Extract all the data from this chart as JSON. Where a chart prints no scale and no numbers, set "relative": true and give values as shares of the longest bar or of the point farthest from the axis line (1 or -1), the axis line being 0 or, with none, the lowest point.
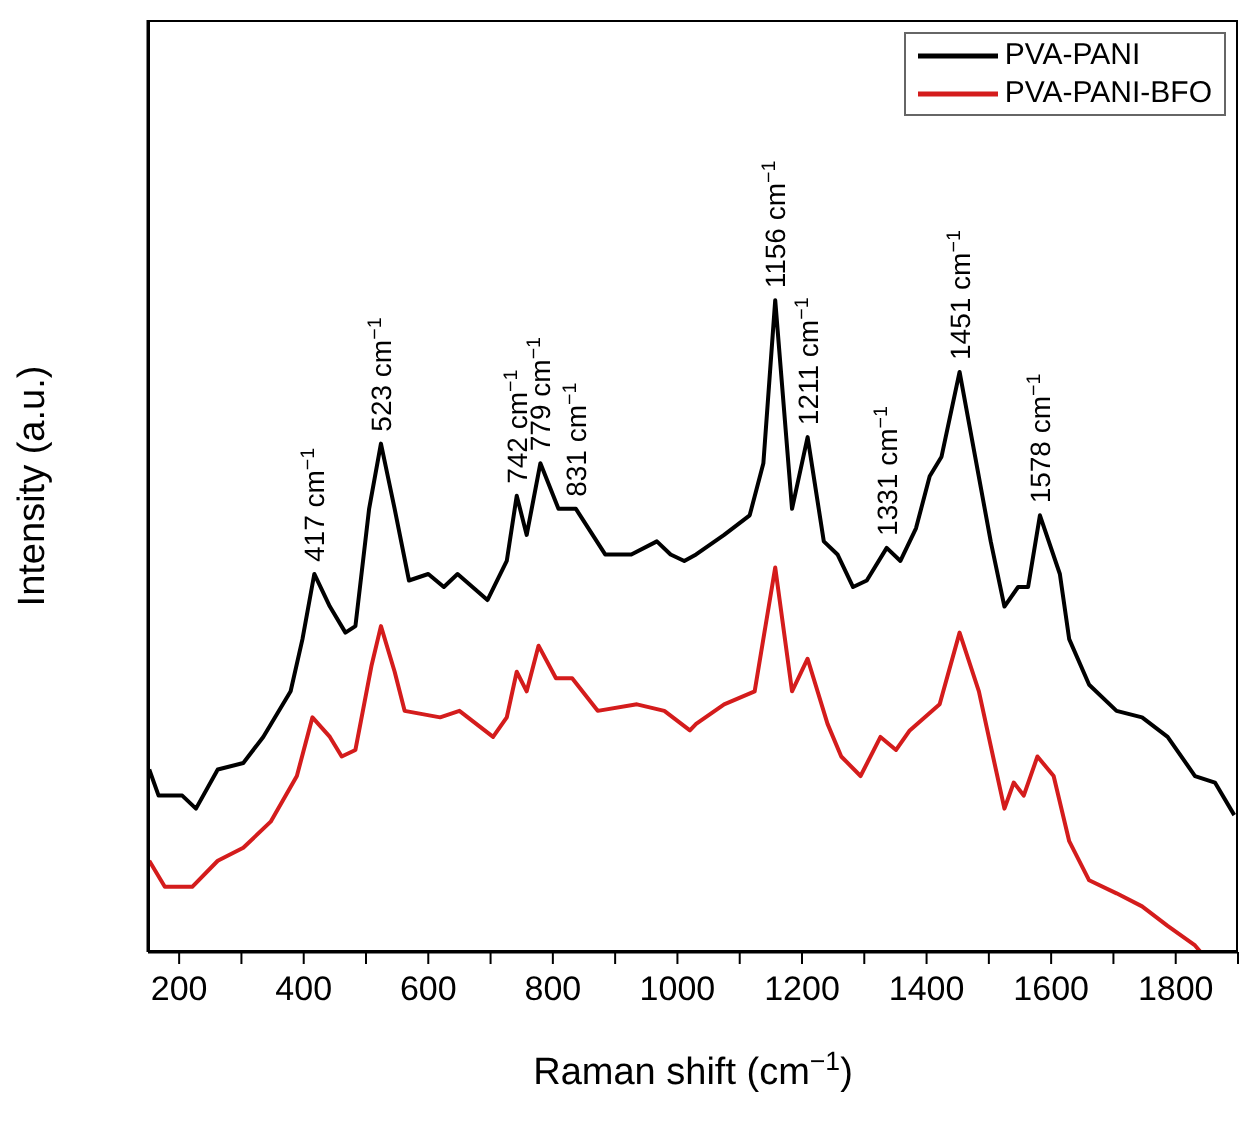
{
  "chart_data": {
    "type": "line",
    "relative": true,
    "xlabel": "Raman shift (cm$^{−1}$)",
    "ylabel": "Intensity (a.u.)",
    "xlim": [
      150,
      1900
    ],
    "xticks": [
      200,
      {
        "value": 300,
        "label": null
      },
      400,
      {
        "value": 500,
        "label": null
      },
      600,
      {
        "value": 700,
        "label": null
      },
      800,
      {
        "value": 900,
        "label": null
      },
      1000,
      {
        "value": 1100,
        "label": null
      },
      1200,
      {
        "value": 1300,
        "label": null
      },
      1400,
      {
        "value": 1500,
        "label": null
      },
      1600,
      {
        "value": 1700,
        "label": null
      },
      1800,
      {
        "value": 1900,
        "label": null
      }
    ],
    "legend": "top right",
    "marker": "none",
    "line_style": "solid",
    "grid": false,
    "series": [
      {
        "name": "PVA-PANI",
        "color": "#000000",
        "x": [
          152,
          167,
          205,
          227,
          262,
          303,
          335,
          379,
          398,
          417,
          442,
          467,
          483,
          505,
          524,
          546,
          569,
          600,
          625,
          647,
          695,
          726,
          742,
          758,
          780,
          809,
          837,
          884,
          926,
          967,
          989,
          1011,
          1030,
          1075,
          1116,
          1138,
          1157,
          1184,
          1209,
          1235,
          1257,
          1282,
          1304,
          1336,
          1358,
          1383,
          1405,
          1424,
          1453,
          1478,
          1503,
          1525,
          1547,
          1563,
          1582,
          1614,
          1629,
          1661,
          1705,
          1746,
          1787,
          1831,
          1863,
          1894
        ],
        "values": [
          0.28,
          0.24,
          0.24,
          0.22,
          0.28,
          0.29,
          0.33,
          0.4,
          0.48,
          0.58,
          0.53,
          0.49,
          0.5,
          0.68,
          0.78,
          0.68,
          0.57,
          0.58,
          0.56,
          0.58,
          0.54,
          0.6,
          0.7,
          0.64,
          0.75,
          0.68,
          0.68,
          0.61,
          0.61,
          0.63,
          0.61,
          0.6,
          0.61,
          0.64,
          0.67,
          0.75,
          1.0,
          0.68,
          0.79,
          0.63,
          0.61,
          0.56,
          0.57,
          0.62,
          0.6,
          0.65,
          0.73,
          0.76,
          0.89,
          0.76,
          0.63,
          0.53,
          0.56,
          0.56,
          0.67,
          0.58,
          0.48,
          0.41,
          0.37,
          0.36,
          0.33,
          0.27,
          0.26,
          0.21
        ]
      },
      {
        "name": "PVA-PANI-BFO",
        "color": "#d41c1c",
        "x": [
          152,
          177,
          221,
          262,
          303,
          347,
          389,
          414,
          442,
          461,
          483,
          509,
          524,
          546,
          562,
          619,
          650,
          704,
          726,
          742,
          758,
          777,
          805,
          831,
          872,
          935,
          979,
          1020,
          1030,
          1075,
          1124,
          1157,
          1184,
          1209,
          1241,
          1263,
          1294,
          1326,
          1351,
          1373,
          1421,
          1453,
          1484,
          1509,
          1525,
          1540,
          1556,
          1578,
          1604,
          1629,
          1661,
          1705,
          1746,
          1787,
          1831,
          1840
        ],
        "values": [
          0.14,
          0.1,
          0.1,
          0.14,
          0.16,
          0.2,
          0.27,
          0.36,
          0.33,
          0.3,
          0.31,
          0.44,
          0.5,
          0.43,
          0.37,
          0.36,
          0.37,
          0.33,
          0.36,
          0.43,
          0.4,
          0.47,
          0.42,
          0.42,
          0.37,
          0.38,
          0.37,
          0.34,
          0.35,
          0.38,
          0.4,
          0.59,
          0.4,
          0.45,
          0.35,
          0.3,
          0.27,
          0.33,
          0.31,
          0.34,
          0.38,
          0.49,
          0.4,
          0.29,
          0.22,
          0.26,
          0.24,
          0.3,
          0.27,
          0.17,
          0.11,
          0.09,
          0.07,
          0.04,
          0.01,
          0.0
        ]
      }
    ],
    "annotations": [
      {
        "text": "417 cm$^{−1}$",
        "x": 417,
        "y": 0.58
      },
      {
        "text": "523 cm$^{−1}$",
        "x": 524,
        "y": 0.78
      },
      {
        "text": "742 cm$^{−1}$",
        "x": 742,
        "y": 0.7
      },
      {
        "text": "779 cm$^{−1}$",
        "x": 780,
        "y": 0.75
      },
      {
        "text": "831 cm$^{−1}$",
        "x": 837,
        "y": 0.68
      },
      {
        "text": "1156 cm$^{−1}$",
        "x": 1157,
        "y": 1.0
      },
      {
        "text": "1211 cm$^{−1}$",
        "x": 1209,
        "y": 0.79
      },
      {
        "text": "1331 cm$^{−1}$",
        "x": 1336,
        "y": 0.62
      },
      {
        "text": "1451 cm$^{−1}$",
        "x": 1453,
        "y": 0.89
      },
      {
        "text": "1578 cm$^{−1}$",
        "x": 1582,
        "y": 0.67
      }
    ]
  }
}
